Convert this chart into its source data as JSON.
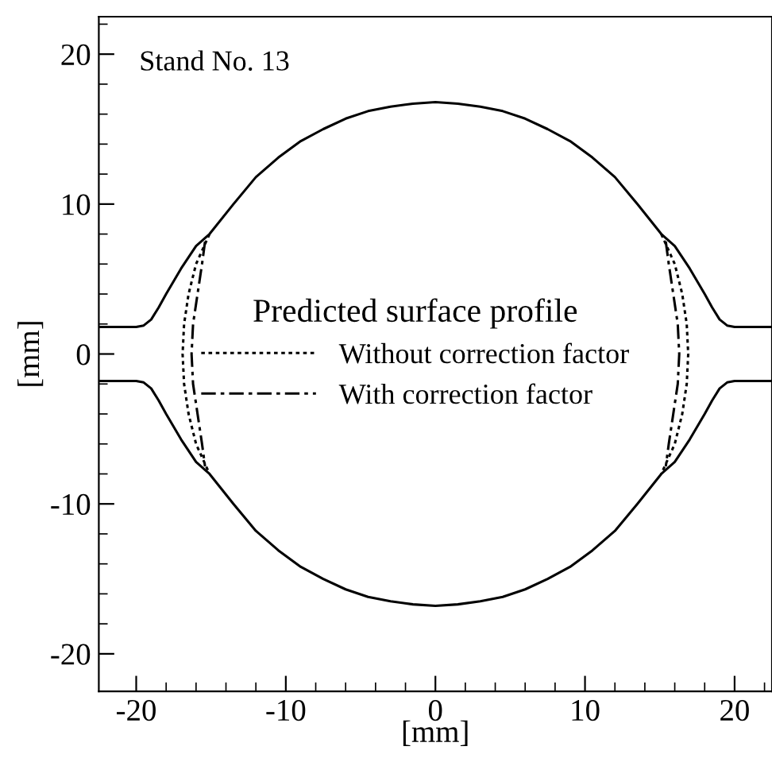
{
  "chart_data": {
    "type": "line",
    "xlabel": "[mm]",
    "ylabel": "[mm]",
    "legend_title": "Predicted surface profile",
    "annotations": [
      "Stand No. 13"
    ],
    "xlim": [
      -22.5,
      22.5
    ],
    "ylim": [
      -22.5,
      22.5
    ],
    "xticks": [
      -20,
      {
        "value": -18,
        "label": null
      },
      {
        "value": -16,
        "label": null
      },
      {
        "value": -14,
        "label": null
      },
      {
        "value": -12,
        "label": null
      },
      -10,
      {
        "value": -8,
        "label": null
      },
      {
        "value": -6,
        "label": null
      },
      {
        "value": -4,
        "label": null
      },
      {
        "value": -2,
        "label": null
      },
      0,
      {
        "value": 2,
        "label": null
      },
      {
        "value": 4,
        "label": null
      },
      {
        "value": 6,
        "label": null
      },
      {
        "value": 8,
        "label": null
      },
      10,
      {
        "value": 12,
        "label": null
      },
      {
        "value": 14,
        "label": null
      },
      {
        "value": 16,
        "label": null
      },
      {
        "value": 18,
        "label": null
      },
      20,
      {
        "value": 22,
        "label": null
      }
    ],
    "yticks": [
      -20,
      {
        "value": -18,
        "label": null
      },
      {
        "value": -16,
        "label": null
      },
      {
        "value": -14,
        "label": null
      },
      {
        "value": -12,
        "label": null
      },
      -10,
      {
        "value": -8,
        "label": null
      },
      {
        "value": -6,
        "label": null
      },
      {
        "value": -4,
        "label": null
      },
      {
        "value": -2,
        "label": null
      },
      0,
      {
        "value": 2,
        "label": null
      },
      {
        "value": 4,
        "label": null
      },
      {
        "value": 6,
        "label": null
      },
      {
        "value": 8,
        "label": null
      },
      10,
      {
        "value": 12,
        "label": null
      },
      {
        "value": 14,
        "label": null
      },
      {
        "value": 16,
        "label": null
      },
      {
        "value": 18,
        "label": null
      },
      20,
      {
        "value": 22,
        "label": null
      }
    ],
    "grid": false,
    "legend": "center",
    "marker": "none",
    "series": [
      {
        "color": "#000000",
        "line_style": "solid",
        "x": [
          -22.5,
          -20,
          -19.5,
          -19,
          -18.5,
          -18,
          -17,
          -16,
          -15.1,
          -13.5,
          -12,
          -10.5,
          -9,
          -7.5,
          -6,
          -4.5,
          -3,
          -1.5,
          0,
          1.5,
          3,
          4.5,
          6,
          7.5,
          9,
          10.5,
          12,
          13.5,
          15.1,
          16,
          17,
          18,
          18.5,
          19,
          19.5,
          20,
          22.5
        ],
        "values": [
          1.8,
          1.8,
          1.9,
          2.3,
          3.1,
          4.0,
          5.7,
          7.2,
          8.0,
          10.0,
          11.8,
          13.1,
          14.2,
          15.0,
          15.7,
          16.2,
          16.5,
          16.7,
          16.8,
          16.7,
          16.5,
          16.2,
          15.7,
          15.0,
          14.2,
          13.1,
          11.8,
          10.0,
          8.0,
          7.2,
          5.7,
          4.0,
          3.1,
          2.3,
          1.9,
          1.8,
          1.8
        ]
      },
      {
        "color": "#000000",
        "line_style": "solid",
        "x": [
          -22.5,
          -20,
          -19.5,
          -19,
          -18.5,
          -18,
          -17,
          -16,
          -15.1,
          -13.5,
          -12,
          -10.5,
          -9,
          -7.5,
          -6,
          -4.5,
          -3,
          -1.5,
          0,
          1.5,
          3,
          4.5,
          6,
          7.5,
          9,
          10.5,
          12,
          13.5,
          15.1,
          16,
          17,
          18,
          18.5,
          19,
          19.5,
          20,
          22.5
        ],
        "values": [
          -1.8,
          -1.8,
          -1.9,
          -2.3,
          -3.1,
          -4.0,
          -5.7,
          -7.2,
          -8.0,
          -10.0,
          -11.8,
          -13.1,
          -14.2,
          -15.0,
          -15.7,
          -16.2,
          -16.5,
          -16.7,
          -16.8,
          -16.7,
          -16.5,
          -16.2,
          -15.7,
          -15.0,
          -14.2,
          -13.1,
          -11.8,
          -10.0,
          -8.0,
          -7.2,
          -5.7,
          -4.0,
          -3.1,
          -2.3,
          -1.9,
          -1.8,
          -1.8
        ]
      },
      {
        "name": "Without correction factor",
        "color": "#000000",
        "line_style": "dotted",
        "x": [
          -15.1,
          -16.0,
          -16.5,
          -16.8,
          -16.9,
          -16.8,
          -16.5,
          -16.0,
          -15.1,
          null,
          15.1,
          16.0,
          16.5,
          16.8,
          16.9,
          16.8,
          16.5,
          16.0,
          15.1
        ],
        "values": [
          8,
          6,
          4,
          2,
          0,
          -2,
          -4,
          -6,
          -8,
          null,
          8,
          6,
          4,
          2,
          0,
          -2,
          -4,
          -6,
          -8
        ]
      },
      {
        "name": "With correction factor",
        "color": "#000000",
        "line_style": "dashdot",
        "x": [
          -15.4,
          -15.6,
          -15.9,
          -16.2,
          -16.3,
          -16.2,
          -15.9,
          -15.6,
          -15.4,
          null,
          15.4,
          15.6,
          15.9,
          16.2,
          16.3,
          16.2,
          15.9,
          15.6,
          15.4
        ],
        "values": [
          7.5,
          6,
          4,
          2,
          0,
          -2,
          -4,
          -6,
          -7.5,
          null,
          7.5,
          6,
          4,
          2,
          0,
          -2,
          -4,
          -6,
          -7.5
        ]
      }
    ]
  }
}
